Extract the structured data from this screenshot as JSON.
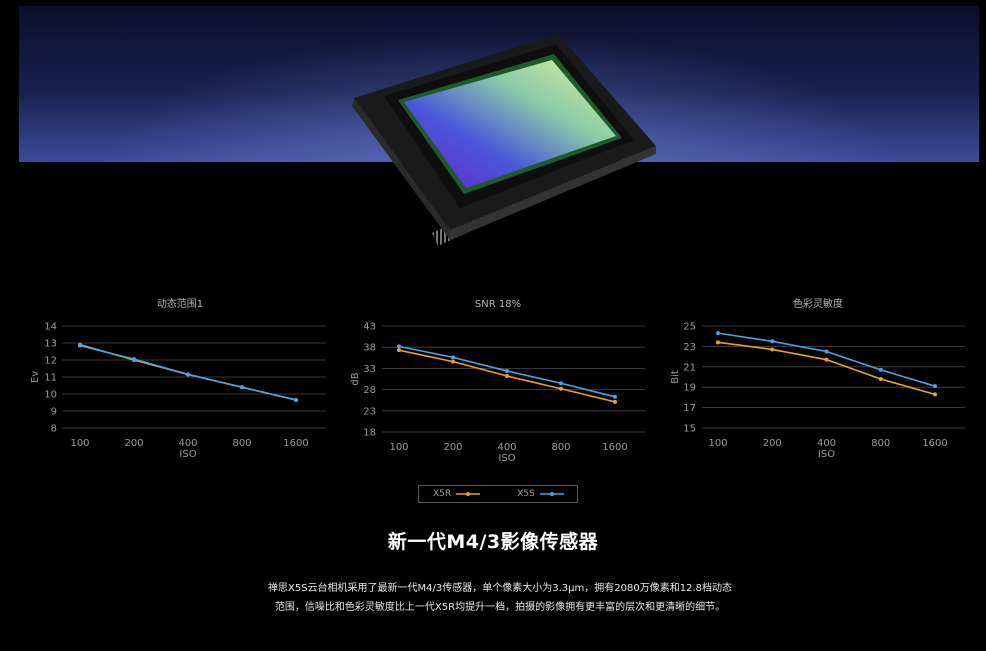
{
  "chart_data": [
    {
      "type": "line",
      "title": "动态范围1",
      "categories": [
        "100",
        "200",
        "400",
        "800",
        "1600"
      ],
      "xlabel": "ISO",
      "ylabel": "Ev",
      "ylim": [
        8,
        14
      ],
      "yticks": [
        14,
        13,
        12,
        11,
        10,
        9,
        8
      ],
      "series": [
        {
          "name": "X5R",
          "values": [
            12.9,
            12.0,
            11.15,
            10.4,
            9.65
          ]
        },
        {
          "name": "X5S",
          "values": [
            12.85,
            12.05,
            11.15,
            10.4,
            9.65
          ]
        }
      ],
      "grid": true
    },
    {
      "type": "line",
      "title": "SNR 18%",
      "categories": [
        "100",
        "200",
        "400",
        "800",
        "1600"
      ],
      "xlabel": "ISO",
      "ylabel": "dB",
      "ylim": [
        18,
        43
      ],
      "yticks": [
        43,
        38,
        33,
        28,
        23,
        18
      ],
      "series": [
        {
          "name": "X5R",
          "values": [
            37.3,
            34.6,
            31.2,
            28.2,
            25.1
          ]
        },
        {
          "name": "X5S",
          "values": [
            38.2,
            35.6,
            32.4,
            29.5,
            26.3
          ]
        }
      ],
      "grid": true
    },
    {
      "type": "line",
      "title": "色彩灵敏度",
      "categories": [
        "100",
        "200",
        "400",
        "800",
        "1600"
      ],
      "xlabel": "ISO",
      "ylabel": "Bit",
      "ylim": [
        15,
        25
      ],
      "yticks": [
        25,
        23,
        21,
        19,
        17,
        15
      ],
      "series": [
        {
          "name": "X5R",
          "values": [
            23.4,
            22.7,
            21.7,
            19.8,
            18.3
          ]
        },
        {
          "name": "X5S",
          "values": [
            24.3,
            23.5,
            22.5,
            20.7,
            19.1
          ]
        }
      ],
      "grid": true
    }
  ],
  "legend": {
    "items": [
      {
        "label": "X5R",
        "color": "#f0a020"
      },
      {
        "label": "X5S",
        "color": "#4aa3e8"
      }
    ]
  },
  "headline": "新一代M4/3影像传感器",
  "description": {
    "line1": "禅思X5S云台相机采用了最新一代M4/3传感器，单个像素大小为3.3μm，拥有2080万像素和12.8档动态",
    "line2": "范围，信噪比和色彩灵敏度比上一代X5R均提升一档，拍摄的影像拥有更丰富的层次和更清晰的细节。"
  },
  "colors": {
    "x5r": "#f0a020",
    "x5s": "#4aa3e8",
    "grid": "#4a4a4a",
    "background": "#000000"
  }
}
